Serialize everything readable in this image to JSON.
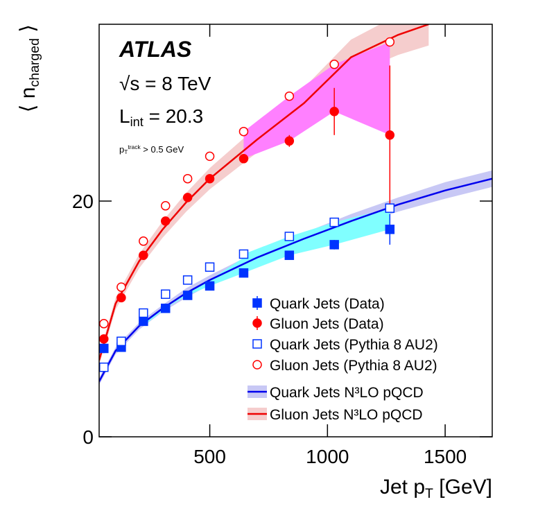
{
  "chart_data": {
    "type": "scatter",
    "xlim": [
      30,
      1700
    ],
    "ylim": [
      0,
      35
    ],
    "xticks": [
      500,
      1000,
      1500
    ],
    "yticks": [
      0,
      20
    ],
    "x_label": [
      {
        "text": "Jet p"
      },
      {
        "text": "T",
        "sub": true
      },
      {
        "text": " [GeV]"
      }
    ],
    "y_label": [
      {
        "text": "⟨ n"
      },
      {
        "text": "charged",
        "sub": true
      },
      {
        "text": " ⟩"
      }
    ],
    "annotations": [
      [
        {
          "text": "ATLAS",
          "bold": true
        }
      ],
      [
        {
          "text": "√s = 8 TeV"
        }
      ],
      [
        {
          "text": "L"
        },
        {
          "text": "int",
          "sub": true
        },
        {
          "text": " = 20.3"
        }
      ],
      [
        {
          "text": "p"
        },
        {
          "text": "T",
          "sub": true
        },
        {
          "text": "track",
          "sup": true
        },
        {
          "text": " > 0.5 GeV"
        }
      ]
    ],
    "series": [
      {
        "name": "Quark Jets (Data)",
        "color": "#0033ff",
        "marker": "square",
        "filled": true,
        "fill_color": "#80ffff",
        "x": [
          50,
          124,
          218,
          312,
          406,
          500,
          644,
          838,
          1029,
          1265
        ],
        "values": [
          7.5,
          7.6,
          9.8,
          10.9,
          12.0,
          12.8,
          13.9,
          15.4,
          16.3,
          17.6
        ],
        "errors": [
          0.4,
          0.2,
          0.2,
          0.2,
          0.2,
          0.2,
          0.2,
          0.2,
          0.4,
          1.3
        ]
      },
      {
        "name": "Gluon Jets (Data)",
        "color": "#ff0000",
        "marker": "circle",
        "filled": true,
        "fill_color": "#ff80ff",
        "x": [
          50,
          124,
          218,
          312,
          406,
          500,
          644,
          838,
          1029,
          1265
        ],
        "values": [
          8.3,
          11.8,
          15.4,
          18.3,
          20.3,
          21.9,
          23.6,
          25.1,
          27.6,
          25.6
        ],
        "errors": [
          0.3,
          0.2,
          0.2,
          0.2,
          0.2,
          0.2,
          0.2,
          0.5,
          2.0,
          5.9
        ]
      },
      {
        "name": "Quark Jets (Pythia 8 AU2)",
        "color": "#0033ff",
        "marker": "square",
        "filled": false,
        "x": [
          50,
          124,
          218,
          312,
          406,
          500,
          644,
          838,
          1029,
          1265
        ],
        "values": [
          5.9,
          8.1,
          10.5,
          12.1,
          13.3,
          14.4,
          15.5,
          17.0,
          18.2,
          19.4
        ]
      },
      {
        "name": "Gluon Jets (Pythia 8 AU2)",
        "color": "#ff0000",
        "marker": "circle",
        "filled": false,
        "x": [
          50,
          124,
          218,
          312,
          406,
          500,
          644,
          838,
          1029,
          1265
        ],
        "values": [
          9.6,
          12.7,
          16.6,
          19.6,
          21.9,
          23.8,
          25.9,
          28.9,
          31.6,
          33.5
        ]
      },
      {
        "name": "Quark Jets N³LO pQCD",
        "color": "#0000ee",
        "marker": "curve",
        "band_color": "#c8c8f5",
        "x": [
          30,
          100,
          200,
          300,
          400,
          500,
          700,
          900,
          1100,
          1300,
          1500,
          1700
        ],
        "values": [
          4.7,
          7.3,
          9.4,
          10.9,
          12.2,
          13.3,
          15.2,
          16.8,
          18.3,
          19.7,
          20.9,
          21.9
        ],
        "errors": [
          0.3,
          0.3,
          0.3,
          0.3,
          0.4,
          0.4,
          0.5,
          0.5,
          0.6,
          0.6,
          0.7,
          0.7
        ]
      },
      {
        "name": "Gluon Jets N³LO pQCD",
        "color": "#ee0000",
        "marker": "curve",
        "band_color": "#f5cdcd",
        "x": [
          30,
          100,
          200,
          300,
          400,
          500,
          700,
          900,
          1100,
          1300,
          1430
        ],
        "values": [
          6.5,
          11.3,
          14.9,
          17.6,
          19.9,
          21.9,
          25.2,
          28.3,
          32.2,
          34.1,
          35
        ],
        "errors": [
          0.4,
          0.5,
          0.6,
          0.7,
          0.8,
          0.9,
          1.1,
          1.3,
          1.5,
          1.7,
          1.8
        ]
      }
    ]
  }
}
